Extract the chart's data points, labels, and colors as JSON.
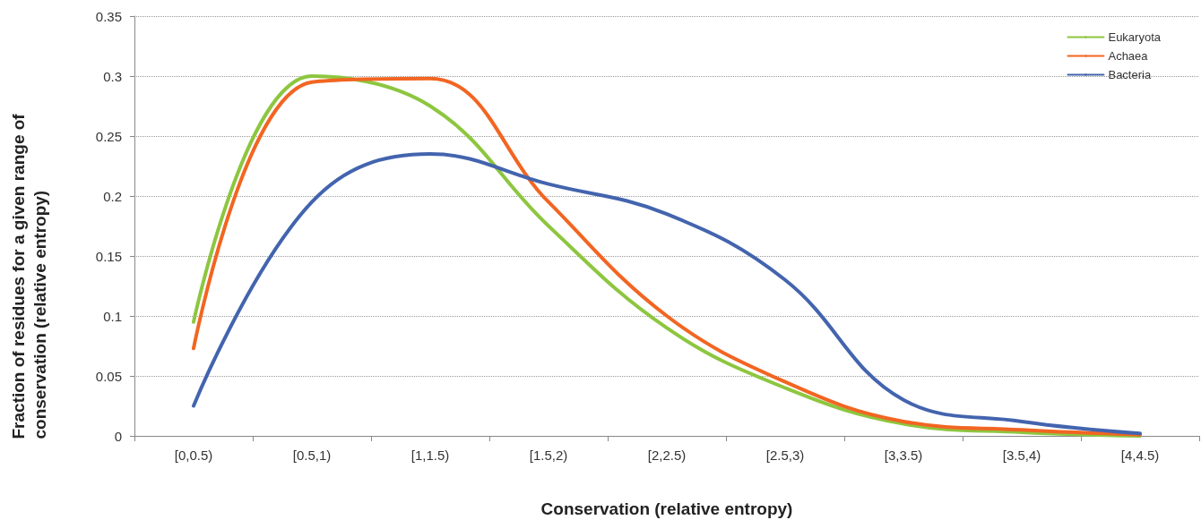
{
  "chart_data": {
    "type": "line",
    "xlabel": "Conservation (relative entropy)",
    "ylabel": "Fraction of residues for a given range of conservation (relative entropy)",
    "categories": [
      "[0,0.5)",
      "[0.5,1)",
      "[1,1.5)",
      "[1.5,2)",
      "[2,2.5)",
      "[2.5,3)",
      "[3,3.5)",
      "[3.5,4)",
      "[4,4.5)"
    ],
    "series": [
      {
        "name": "Eukaryota",
        "color": "#8dc63f",
        "values": [
          0.095,
          0.3,
          0.275,
          0.175,
          0.09,
          0.04,
          0.01,
          0.003,
          0
        ]
      },
      {
        "name": "Achaea",
        "color": "#f26522",
        "values": [
          0.073,
          0.295,
          0.298,
          0.195,
          0.1,
          0.045,
          0.012,
          0.005,
          0.001
        ]
      },
      {
        "name": "Bacteria",
        "color": "#4364ae",
        "values": [
          0.025,
          0.195,
          0.235,
          0.21,
          0.185,
          0.13,
          0.03,
          0.012,
          0.002
        ]
      }
    ],
    "ylim": [
      0,
      0.35
    ],
    "yticks": [
      0,
      0.05,
      0.1,
      0.15,
      0.2,
      0.25,
      0.3,
      0.35
    ],
    "grid": "y",
    "legend": "top right",
    "marker": "none",
    "line_style": "solid"
  }
}
